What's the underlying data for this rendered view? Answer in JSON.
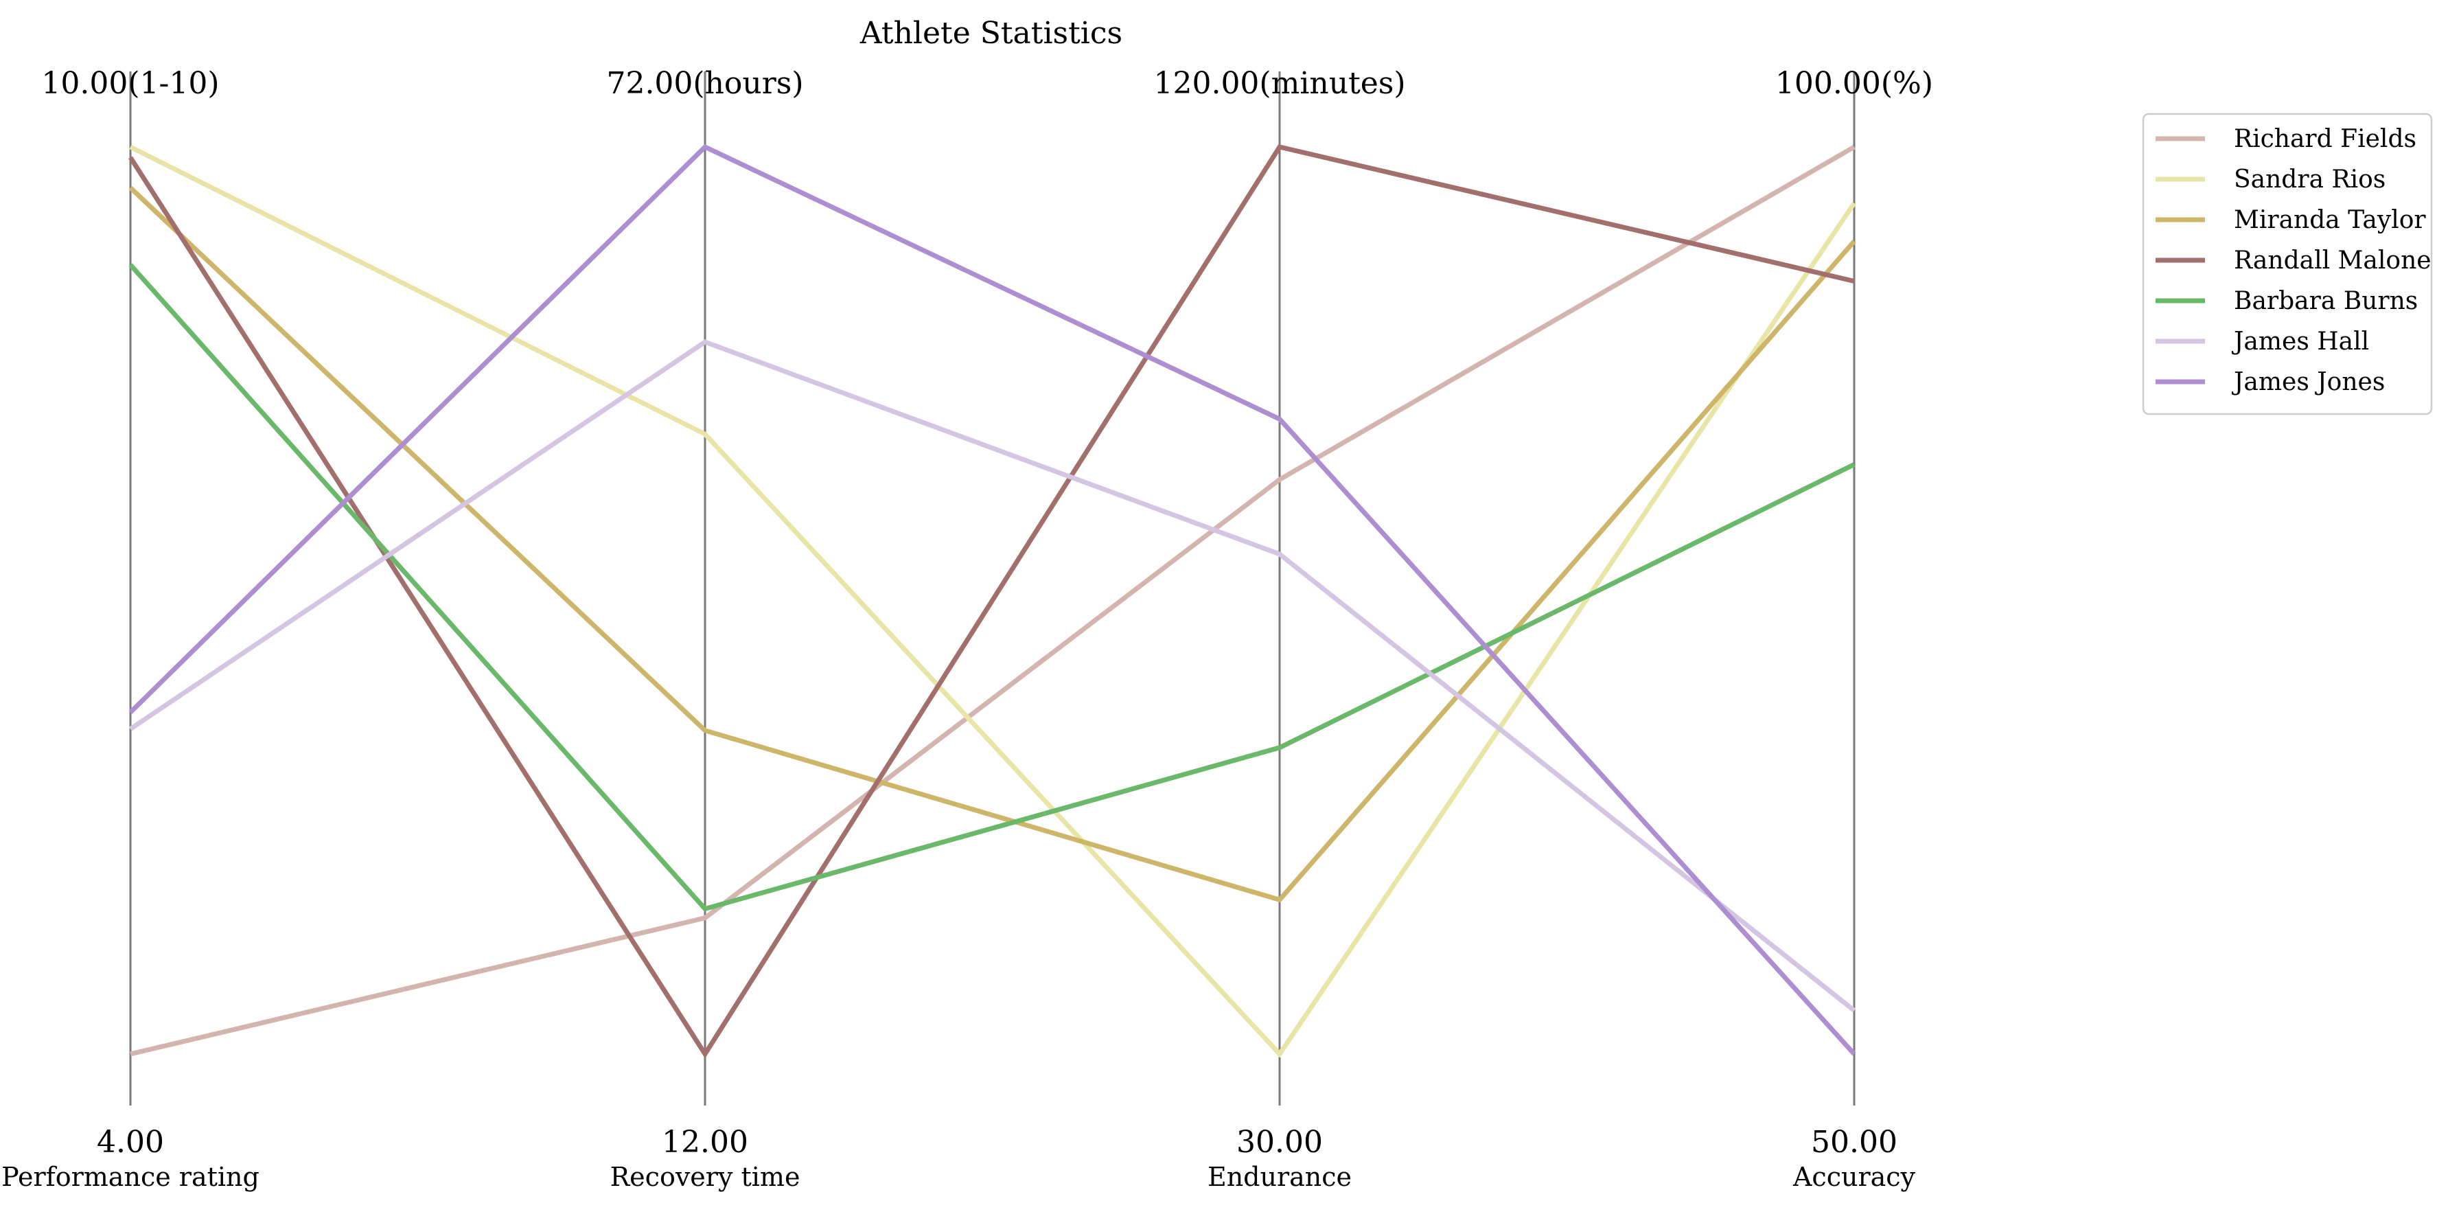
{
  "chart_data": {
    "type": "line",
    "title": "Athlete Statistics",
    "axes": [
      {
        "name": "Performance rating",
        "min": 4.0,
        "max": 10.0,
        "min_label": "4.00",
        "max_label": "10.00(1-10)"
      },
      {
        "name": "Recovery time",
        "min": 12.0,
        "max": 72.0,
        "min_label": "12.00",
        "max_label": "72.00(hours)"
      },
      {
        "name": "Endurance",
        "min": 30.0,
        "max": 120.0,
        "min_label": "30.00",
        "max_label": "120.00(minutes)"
      },
      {
        "name": "Accuracy",
        "min": 50.0,
        "max": 100.0,
        "min_label": "50.00",
        "max_label": "100.00(%)"
      }
    ],
    "series": [
      {
        "name": "Richard Fields",
        "color": "#d4b4ae",
        "values": [
          4.0,
          21.0,
          87.0,
          100.0
        ]
      },
      {
        "name": "Sandra Rios",
        "color": "#e8e5a7",
        "values": [
          10.0,
          53.0,
          30.0,
          96.9
        ]
      },
      {
        "name": "Miranda Taylor",
        "color": "#cdb56a",
        "values": [
          9.73,
          33.4,
          45.3,
          94.8
        ]
      },
      {
        "name": "Randall Malone",
        "color": "#a26f6d",
        "values": [
          9.93,
          12.0,
          120.0,
          92.6
        ]
      },
      {
        "name": "Barbara Burns",
        "color": "#6ab96a",
        "values": [
          9.22,
          21.6,
          60.4,
          82.5
        ]
      },
      {
        "name": "James Hall",
        "color": "#d4c6e2",
        "values": [
          6.15,
          59.1,
          79.6,
          52.4
        ]
      },
      {
        "name": "James Jones",
        "color": "#ad8fd1",
        "values": [
          6.26,
          72.0,
          93.0,
          50.0
        ]
      }
    ],
    "legend": "top-right",
    "grid": false
  }
}
